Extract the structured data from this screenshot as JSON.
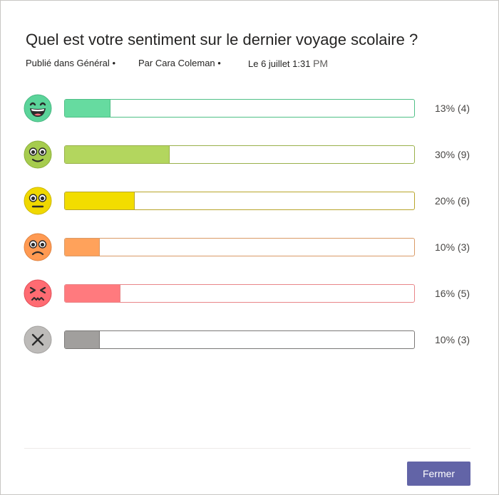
{
  "poll": {
    "question": "Quel est votre sentiment sur le dernier voyage scolaire ?",
    "posted_in": "Publié dans Général",
    "author": "Par Cara Coleman",
    "date": "Le 6 juillet 1:31",
    "time_suffix": "PM",
    "bullet": "•"
  },
  "results": [
    {
      "emoji": "grinning-face-icon",
      "percent": 13,
      "label": "13% (4)",
      "color": "#66dba0",
      "border": "#4fbf86"
    },
    {
      "emoji": "smiling-face-icon",
      "percent": 30,
      "label": "30% (9)",
      "color": "#b3d65e",
      "border": "#99b04a"
    },
    {
      "emoji": "neutral-face-icon",
      "percent": 20,
      "label": "20% (6)",
      "color": "#f2dd00",
      "border": "#b8a52a"
    },
    {
      "emoji": "frowning-face-icon",
      "percent": 10,
      "label": "10% (3)",
      "color": "#ffa25b",
      "border": "#d99a66"
    },
    {
      "emoji": "persevering-face-icon",
      "percent": 16,
      "label": "16% (5)",
      "color": "#ff7a7e",
      "border": "#e88588"
    },
    {
      "emoji": "no-response-icon",
      "percent": 10,
      "label": "10% (3)",
      "color": "#a19f9d",
      "border": "#7a7876"
    }
  ],
  "footer": {
    "close_label": "Fermer"
  }
}
